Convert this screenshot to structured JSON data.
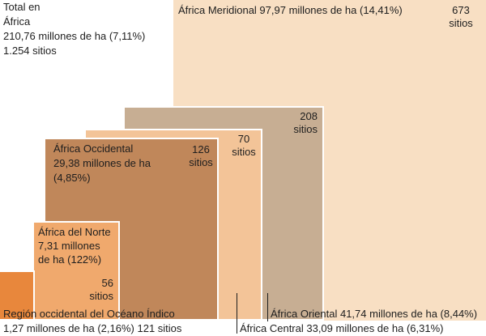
{
  "chart_data": {
    "type": "area",
    "unit": "millones de ha",
    "total": {
      "lines": [
        "Total en",
        "África",
        "210,76 millones de ha (7,11%)",
        "1.254 sitios"
      ],
      "area": 210.76,
      "percent": 7.11,
      "sites": 1254
    },
    "regions": [
      {
        "id": "meridional",
        "name": "África Meridional",
        "area": 97.97,
        "percent": 14.41,
        "sites": 673,
        "color": "#f8dfc3",
        "label_lines": [
          "África Meridional 97,97 millones de ha (14,41%)"
        ],
        "sites_lines": [
          "673",
          "sitios"
        ]
      },
      {
        "id": "oriental",
        "name": "África Oriental",
        "area": 41.74,
        "percent": 8.44,
        "sites": 208,
        "color": "#c7ae93",
        "label_lines": [
          "África Oriental 41,74 millones de ha (8,44%)"
        ],
        "sites_lines": [
          "208",
          "sitios"
        ]
      },
      {
        "id": "central",
        "name": "África Central",
        "area": 33.09,
        "percent": 6.31,
        "sites": 70,
        "color": "#f3c498",
        "label_lines": [
          "África Central 33,09 millones de ha (6,31%)"
        ],
        "sites_lines": [
          "70",
          "sitios"
        ]
      },
      {
        "id": "occidental",
        "name": "África Occidental",
        "area": 29.38,
        "percent": 4.85,
        "sites": 126,
        "color": "#c0875a",
        "label_lines": [
          "África Occidental",
          "29,38 millones de ha",
          "(4,85%)"
        ],
        "sites_lines": [
          "126",
          "sitios"
        ]
      },
      {
        "id": "norte",
        "name": "África del Norte",
        "area": 7.31,
        "percent": 122,
        "sites": 56,
        "color": "#f0a96d",
        "label_lines": [
          "África del Norte",
          "7,31 millones",
          "de ha (122%)"
        ],
        "sites_lines": [
          "56",
          "sitios"
        ]
      },
      {
        "id": "indico",
        "name": "Región occidental del Océano Índico",
        "area": 1.27,
        "percent": 2.16,
        "sites": 121,
        "color": "#e8873c",
        "label_lines": [
          "Región occidental del Océano Índico",
          "1,27 millones de ha (2,16%) 121 sitios"
        ],
        "sites_lines": []
      }
    ]
  }
}
